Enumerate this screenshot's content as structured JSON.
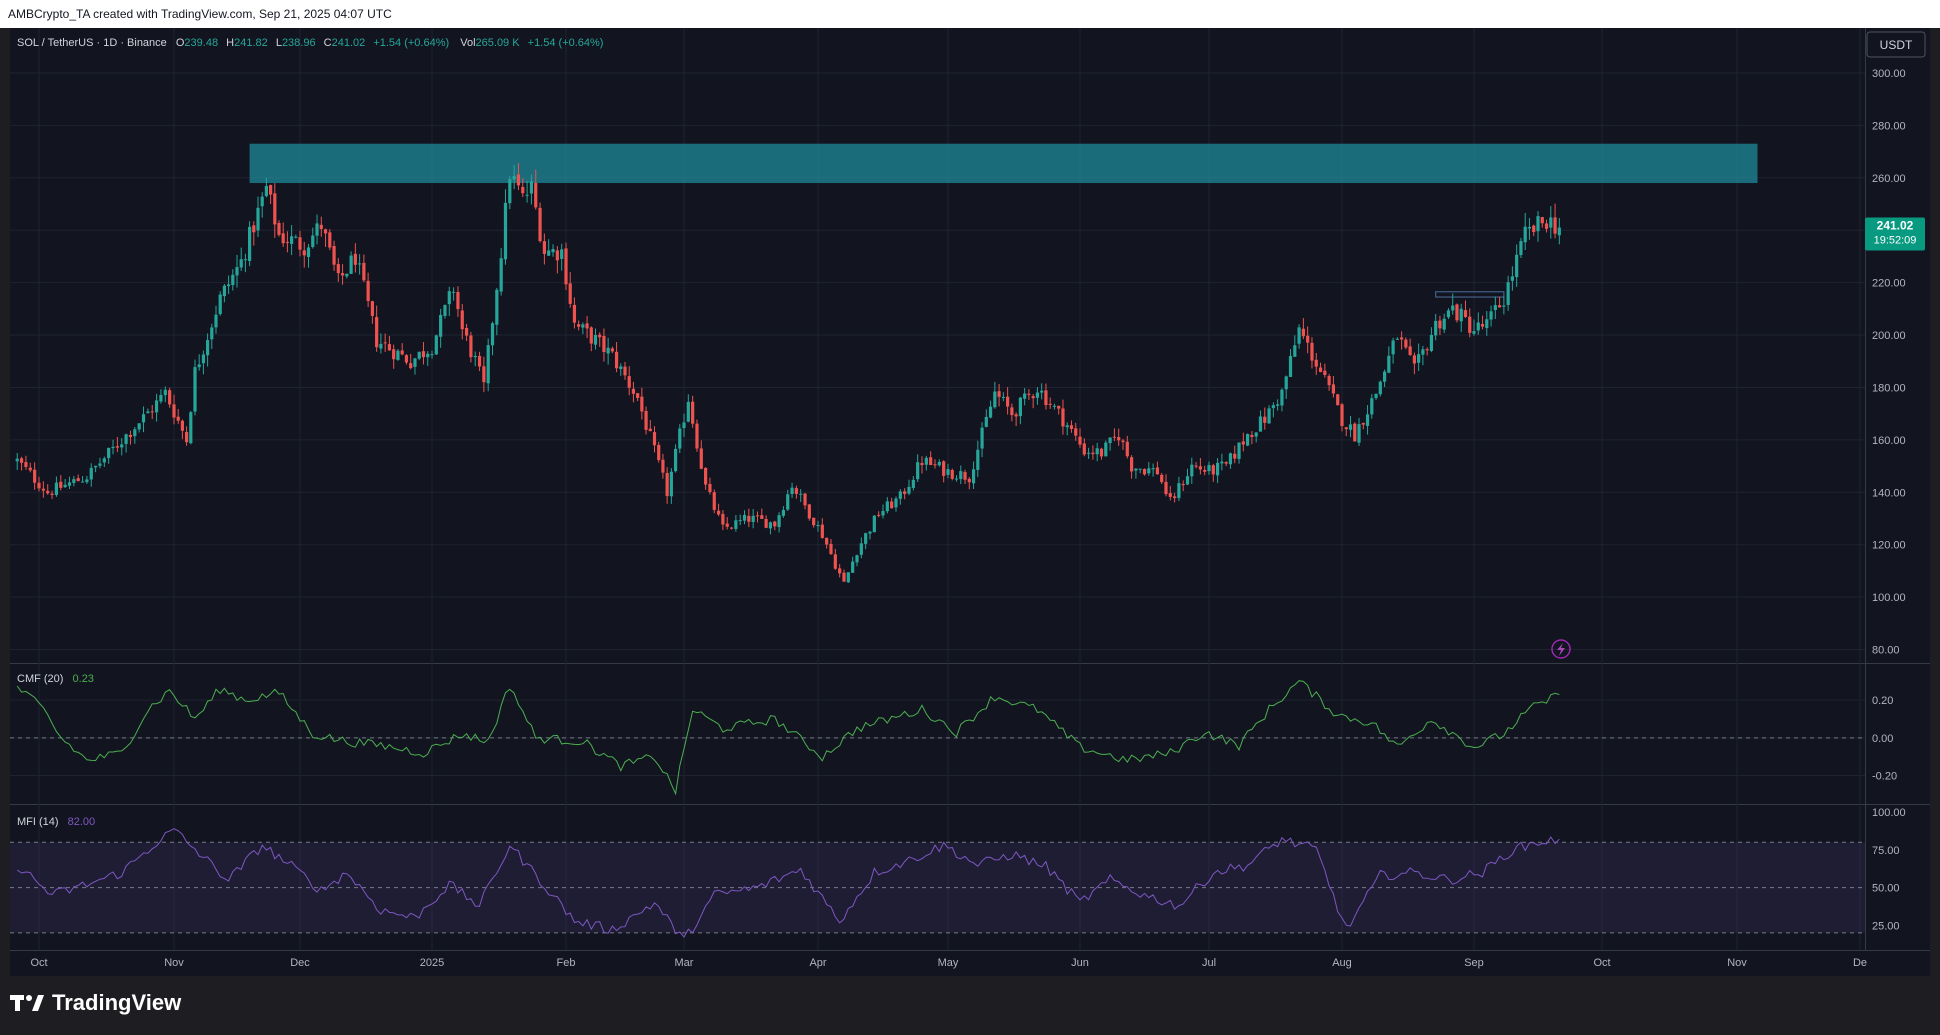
{
  "header": {
    "attribution": "AMBCrypto_TA created with TradingView.com, Sep 21, 2025 04:07 UTC"
  },
  "footer": {
    "brand": "TradingView"
  },
  "legend": {
    "symbol": "SOL / TetherUS · 1D · Binance",
    "o_label": "O",
    "o_value": "239.48",
    "h_label": "H",
    "h_value": "241.82",
    "l_label": "L",
    "l_value": "238.96",
    "c_label": "C",
    "c_value": "241.02",
    "change": "+1.54 (+0.64%)",
    "vol_label": "Vol",
    "vol_value": "265.09 K",
    "vol_change": "+1.54 (+0.64%)"
  },
  "currency_button": "USDT",
  "price_badge": {
    "price": "241.02",
    "countdown": "19:52:09"
  },
  "colors": {
    "up": "#26a69a",
    "down": "#ef5350",
    "zone": "#1f8a99",
    "cmf": "#4caf50",
    "mfi": "#7e57c2",
    "badge": "#089981"
  },
  "chart_data": [
    {
      "type": "candlestick",
      "name": "SOL / TetherUS",
      "x_ticks": [
        "Oct",
        "Nov",
        "Dec",
        "2025",
        "Feb",
        "Mar",
        "Apr",
        "May",
        "Jun",
        "Jul",
        "Aug",
        "Sep",
        "Oct",
        "Nov",
        "De"
      ],
      "y_ticks": [
        "300.00",
        "280.00",
        "260.00",
        "240.00",
        "220.00",
        "200.00",
        "180.00",
        "160.00",
        "140.00",
        "120.00",
        "100.00",
        "80.00"
      ],
      "ylim": [
        76,
        308
      ],
      "resistance_zone": {
        "from": "2024-11-19",
        "to": "2025-11-06",
        "low": 258,
        "high": 273
      },
      "consolidation_box": {
        "from": "2025-08-23",
        "to": "2025-09-08",
        "low": 214.5,
        "high": 216.5
      },
      "anchors": [
        [
          "2024-09-26",
          152
        ],
        [
          "2024-10-03",
          140
        ],
        [
          "2024-10-06",
          142
        ],
        [
          "2024-10-12",
          146
        ],
        [
          "2024-10-20",
          160
        ],
        [
          "2024-10-27",
          172
        ],
        [
          "2024-10-30",
          178
        ],
        [
          "2024-11-04",
          160
        ],
        [
          "2024-11-06",
          186
        ],
        [
          "2024-11-12",
          214
        ],
        [
          "2024-11-17",
          228
        ],
        [
          "2024-11-23",
          256
        ],
        [
          "2024-11-26",
          238
        ],
        [
          "2024-12-02",
          234
        ],
        [
          "2024-12-06",
          242
        ],
        [
          "2024-12-10",
          220
        ],
        [
          "2024-12-14",
          230
        ],
        [
          "2024-12-19",
          198
        ],
        [
          "2024-12-27",
          190
        ],
        [
          "2025-01-01",
          196
        ],
        [
          "2025-01-06",
          218
        ],
        [
          "2025-01-08",
          202
        ],
        [
          "2025-01-11",
          190
        ],
        [
          "2025-01-13",
          180
        ],
        [
          "2025-01-17",
          232
        ],
        [
          "2025-01-19",
          262
        ],
        [
          "2025-01-22",
          252
        ],
        [
          "2025-01-24",
          256
        ],
        [
          "2025-01-27",
          232
        ],
        [
          "2025-01-31",
          232
        ],
        [
          "2025-02-03",
          204
        ],
        [
          "2025-02-08",
          198
        ],
        [
          "2025-02-12",
          192
        ],
        [
          "2025-02-18",
          176
        ],
        [
          "2025-02-25",
          140
        ],
        [
          "2025-03-02",
          176
        ],
        [
          "2025-03-06",
          142
        ],
        [
          "2025-03-10",
          126
        ],
        [
          "2025-03-16",
          130
        ],
        [
          "2025-03-22",
          128
        ],
        [
          "2025-03-26",
          143
        ],
        [
          "2025-04-02",
          124
        ],
        [
          "2025-04-07",
          105
        ],
        [
          "2025-04-10",
          118
        ],
        [
          "2025-04-15",
          132
        ],
        [
          "2025-04-20",
          138
        ],
        [
          "2025-04-25",
          152
        ],
        [
          "2025-05-01",
          148
        ],
        [
          "2025-05-06",
          146
        ],
        [
          "2025-05-12",
          178
        ],
        [
          "2025-05-16",
          170
        ],
        [
          "2025-05-22",
          180
        ],
        [
          "2025-05-28",
          168
        ],
        [
          "2025-06-02",
          156
        ],
        [
          "2025-06-06",
          155
        ],
        [
          "2025-06-10",
          162
        ],
        [
          "2025-06-13",
          150
        ],
        [
          "2025-06-19",
          148
        ],
        [
          "2025-06-22",
          136
        ],
        [
          "2025-06-27",
          150
        ],
        [
          "2025-07-01",
          148
        ],
        [
          "2025-07-05",
          150
        ],
        [
          "2025-07-10",
          162
        ],
        [
          "2025-07-14",
          168
        ],
        [
          "2025-07-18",
          178
        ],
        [
          "2025-07-22",
          202
        ],
        [
          "2025-07-27",
          186
        ],
        [
          "2025-08-01",
          168
        ],
        [
          "2025-08-04",
          162
        ],
        [
          "2025-08-09",
          178
        ],
        [
          "2025-08-14",
          200
        ],
        [
          "2025-08-18",
          186
        ],
        [
          "2025-08-23",
          204
        ],
        [
          "2025-08-27",
          210
        ],
        [
          "2025-09-01",
          202
        ],
        [
          "2025-09-04",
          204
        ],
        [
          "2025-09-08",
          214
        ],
        [
          "2025-09-13",
          238
        ],
        [
          "2025-09-18",
          244
        ],
        [
          "2025-09-21",
          241
        ]
      ]
    },
    {
      "type": "line",
      "name": "CMF (20)",
      "last_value": "0.23",
      "y_ticks": [
        "0.20",
        "0.00",
        "-0.20"
      ],
      "ylim": [
        -0.33,
        0.36
      ],
      "reference_line": 0,
      "anchors": [
        [
          "2024-09-26",
          0.27
        ],
        [
          "2024-10-02",
          0.15
        ],
        [
          "2024-10-06",
          0.0
        ],
        [
          "2024-10-12",
          -0.12
        ],
        [
          "2024-10-20",
          -0.08
        ],
        [
          "2024-10-26",
          0.15
        ],
        [
          "2024-10-31",
          0.25
        ],
        [
          "2024-11-06",
          0.1
        ],
        [
          "2024-11-12",
          0.26
        ],
        [
          "2024-11-18",
          0.2
        ],
        [
          "2024-11-26",
          0.24
        ],
        [
          "2024-12-04",
          0.02
        ],
        [
          "2024-12-12",
          -0.02
        ],
        [
          "2024-12-20",
          -0.04
        ],
        [
          "2024-12-30",
          -0.08
        ],
        [
          "2025-01-08",
          0.02
        ],
        [
          "2025-01-14",
          -0.02
        ],
        [
          "2025-01-19",
          0.28
        ],
        [
          "2025-01-25",
          0.0
        ],
        [
          "2025-02-05",
          -0.02
        ],
        [
          "2025-02-14",
          -0.15
        ],
        [
          "2025-02-22",
          -0.1
        ],
        [
          "2025-02-27",
          -0.28
        ],
        [
          "2025-03-03",
          0.15
        ],
        [
          "2025-03-10",
          0.05
        ],
        [
          "2025-03-22",
          0.1
        ],
        [
          "2025-04-02",
          -0.1
        ],
        [
          "2025-04-10",
          0.05
        ],
        [
          "2025-04-25",
          0.15
        ],
        [
          "2025-05-03",
          0.03
        ],
        [
          "2025-05-12",
          0.22
        ],
        [
          "2025-05-22",
          0.15
        ],
        [
          "2025-06-01",
          -0.05
        ],
        [
          "2025-06-12",
          -0.12
        ],
        [
          "2025-06-22",
          -0.08
        ],
        [
          "2025-06-30",
          0.03
        ],
        [
          "2025-07-08",
          -0.04
        ],
        [
          "2025-07-15",
          0.15
        ],
        [
          "2025-07-22",
          0.3
        ],
        [
          "2025-07-31",
          0.12
        ],
        [
          "2025-08-08",
          0.08
        ],
        [
          "2025-08-14",
          -0.05
        ],
        [
          "2025-08-22",
          0.1
        ],
        [
          "2025-09-01",
          -0.05
        ],
        [
          "2025-09-08",
          0.02
        ],
        [
          "2025-09-14",
          0.15
        ],
        [
          "2025-09-21",
          0.23
        ]
      ]
    },
    {
      "type": "line",
      "name": "MFI (14)",
      "last_value": "82.00",
      "y_ticks": [
        "100.00",
        "75.00",
        "50.00",
        "25.00"
      ],
      "ylim": [
        10,
        104
      ],
      "bands": [
        20,
        50,
        80
      ],
      "anchors": [
        [
          "2024-09-26",
          65
        ],
        [
          "2024-10-04",
          45
        ],
        [
          "2024-10-12",
          52
        ],
        [
          "2024-10-20",
          60
        ],
        [
          "2024-10-28",
          80
        ],
        [
          "2024-11-01",
          88
        ],
        [
          "2024-11-08",
          70
        ],
        [
          "2024-11-14",
          55
        ],
        [
          "2024-11-22",
          78
        ],
        [
          "2024-11-30",
          62
        ],
        [
          "2024-12-06",
          48
        ],
        [
          "2024-12-12",
          60
        ],
        [
          "2024-12-20",
          35
        ],
        [
          "2024-12-28",
          30
        ],
        [
          "2025-01-05",
          52
        ],
        [
          "2025-01-12",
          38
        ],
        [
          "2025-01-19",
          78
        ],
        [
          "2025-01-26",
          55
        ],
        [
          "2025-02-03",
          28
        ],
        [
          "2025-02-12",
          22
        ],
        [
          "2025-02-22",
          40
        ],
        [
          "2025-03-01",
          15
        ],
        [
          "2025-03-08",
          45
        ],
        [
          "2025-03-18",
          50
        ],
        [
          "2025-03-28",
          62
        ],
        [
          "2025-04-06",
          28
        ],
        [
          "2025-04-14",
          60
        ],
        [
          "2025-04-22",
          68
        ],
        [
          "2025-04-30",
          78
        ],
        [
          "2025-05-08",
          65
        ],
        [
          "2025-05-16",
          72
        ],
        [
          "2025-05-24",
          64
        ],
        [
          "2025-06-01",
          40
        ],
        [
          "2025-06-08",
          55
        ],
        [
          "2025-06-16",
          45
        ],
        [
          "2025-06-24",
          38
        ],
        [
          "2025-07-02",
          60
        ],
        [
          "2025-07-10",
          65
        ],
        [
          "2025-07-18",
          82
        ],
        [
          "2025-07-26",
          75
        ],
        [
          "2025-08-02",
          22
        ],
        [
          "2025-08-10",
          58
        ],
        [
          "2025-08-18",
          60
        ],
        [
          "2025-08-26",
          55
        ],
        [
          "2025-09-03",
          60
        ],
        [
          "2025-09-10",
          75
        ],
        [
          "2025-09-16",
          80
        ],
        [
          "2025-09-21",
          82
        ]
      ]
    }
  ]
}
